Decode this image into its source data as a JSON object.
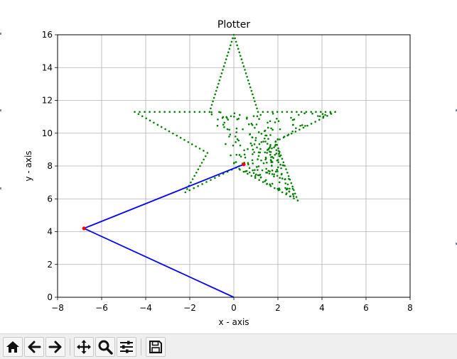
{
  "window": {
    "toolbar_buttons": [
      {
        "name": "home-button",
        "icon": "home-icon"
      },
      {
        "name": "back-button",
        "icon": "arrow-left-icon"
      },
      {
        "name": "forward-button",
        "icon": "arrow-right-icon"
      },
      {
        "name": "pan-button",
        "icon": "move-icon"
      },
      {
        "name": "zoom-button",
        "icon": "magnifier-icon"
      },
      {
        "name": "configure-subplots-button",
        "icon": "sliders-icon"
      },
      {
        "name": "save-button",
        "icon": "floppy-disk-icon"
      }
    ]
  },
  "chart_data": {
    "type": "scatter",
    "title": "Plotter",
    "xlabel": "x - axis",
    "ylabel": "y - axis",
    "xlim": [
      -8,
      8
    ],
    "ylim": [
      0,
      16
    ],
    "xticks": [
      "−8",
      "−6",
      "−4",
      "−2",
      "0",
      "2",
      "4",
      "6",
      "8"
    ],
    "yticks": [
      "0",
      "2",
      "4",
      "6",
      "8",
      "10",
      "12",
      "14",
      "16"
    ],
    "grid": true,
    "arm": {
      "color": "#0000ff",
      "x": [
        0,
        -6.8,
        0.45
      ],
      "y": [
        0,
        4.2,
        8.1
      ],
      "joint_color": "#ff0000"
    },
    "trace": {
      "color": "#008000",
      "outline": [
        {
          "x": 0,
          "y": 16
        },
        {
          "x": 1.1,
          "y": 11.3
        },
        {
          "x": 4.6,
          "y": 11.3
        },
        {
          "x": 1.9,
          "y": 9.5
        },
        {
          "x": 2.9,
          "y": 5.9
        },
        {
          "x": 0.1,
          "y": 7.9
        },
        {
          "x": -2.2,
          "y": 6.4
        },
        {
          "x": -1.2,
          "y": 8.8
        },
        {
          "x": -4.5,
          "y": 11.3
        },
        {
          "x": -1.1,
          "y": 11.3
        }
      ]
    }
  }
}
